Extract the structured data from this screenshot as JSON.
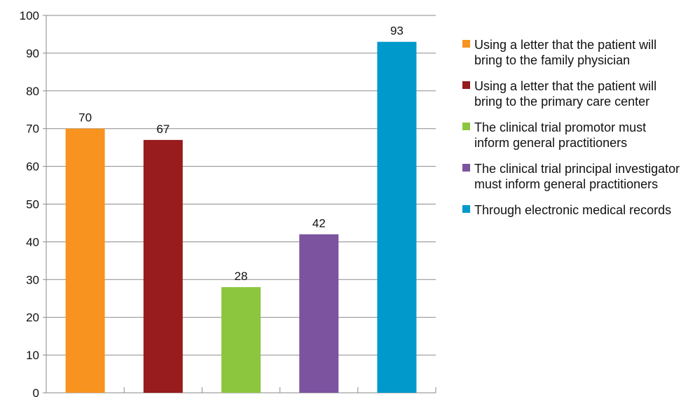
{
  "chart_data": {
    "type": "bar",
    "categories": [
      "Using a letter that the patient will bring to the family physician",
      "Using a letter that the patient will bring to the primary care center",
      "The clinical trial promotor must inform general practitioners",
      "The clinical trial principal investigator must inform general practitioners",
      "Through electronic medical records"
    ],
    "values": [
      70,
      67,
      28,
      42,
      93
    ],
    "colors": [
      "#F7931E",
      "#981B1E",
      "#8CC63F",
      "#7B539F",
      "#0099CC"
    ],
    "ylim": [
      0,
      100
    ],
    "yticks": [
      "0",
      "10",
      "20",
      "30",
      "40",
      "50",
      "60",
      "70",
      "80",
      "90",
      "100"
    ],
    "grid": true,
    "legend_position": "right"
  }
}
